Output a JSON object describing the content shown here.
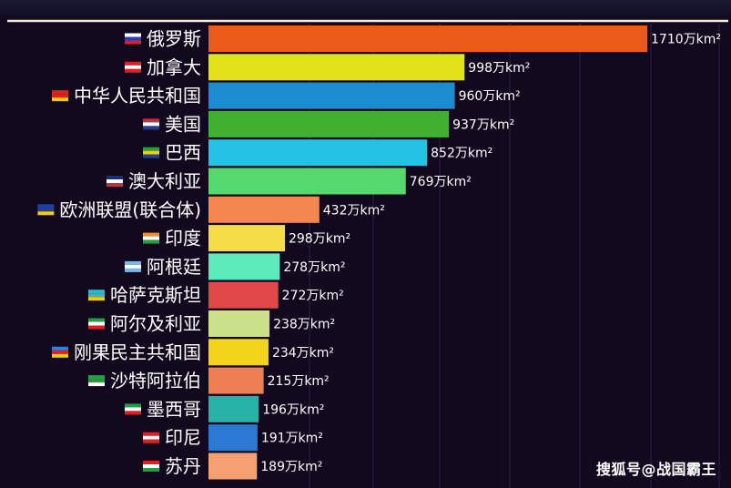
{
  "chart_data": {
    "type": "bar",
    "orientation": "horizontal",
    "unit": "万km²",
    "categories": [
      "俄罗斯",
      "加拿大",
      "中华人民共和国",
      "美国",
      "巴西",
      "澳大利亚",
      "欧洲联盟(联合体)",
      "印度",
      "阿根廷",
      "哈萨克斯坦",
      "阿尔及利亚",
      "刚果民主共和国",
      "沙特阿拉伯",
      "墨西哥",
      "印尼",
      "苏丹"
    ],
    "values": [
      1710,
      998,
      960,
      937,
      852,
      769,
      432,
      298,
      278,
      272,
      238,
      234,
      215,
      196,
      191,
      189
    ],
    "value_labels": [
      "1710万km²",
      "998万km²",
      "960万km²",
      "937万km²",
      "852万km²",
      "769万km²",
      "432万km²",
      "298万km²",
      "278万km²",
      "272万km²",
      "238万km²",
      "234万km²",
      "215万km²",
      "196万km²",
      "191万km²",
      "189万km²"
    ],
    "colors": [
      "#ec5a1a",
      "#e2e21a",
      "#1a8ccf",
      "#41b030",
      "#26c2e6",
      "#55d86e",
      "#f4874f",
      "#f4dc46",
      "#5cecbc",
      "#e04848",
      "#cae08a",
      "#f2d41a",
      "#ec8054",
      "#26b2a6",
      "#2a7ad4",
      "#f4a070"
    ],
    "flag_colors": [
      [
        "#ffffff",
        "#2040c0",
        "#e02020"
      ],
      [
        "#e02020",
        "#ffffff",
        "#e02020"
      ],
      [
        "#e02020",
        "#e02020",
        "#f0d000"
      ],
      [
        "#c03040",
        "#ffffff",
        "#2a3a8a"
      ],
      [
        "#20a040",
        "#f0d000",
        "#2040a0"
      ],
      [
        "#1a2a80",
        "#ffffff",
        "#c03040"
      ],
      [
        "#2040a0",
        "#2040a0",
        "#f0d000"
      ],
      [
        "#f09030",
        "#ffffff",
        "#20a040"
      ],
      [
        "#7ab8e8",
        "#ffffff",
        "#7ab8e8"
      ],
      [
        "#30b8d0",
        "#30b8d0",
        "#f0d000"
      ],
      [
        "#20a040",
        "#ffffff",
        "#e02020"
      ],
      [
        "#3080e0",
        "#e02020",
        "#f0d000"
      ],
      [
        "#20a040",
        "#20a040",
        "#ffffff"
      ],
      [
        "#20a040",
        "#ffffff",
        "#e02020"
      ],
      [
        "#e02020",
        "#ffffff",
        "#e02020"
      ],
      [
        "#e02020",
        "#ffffff",
        "#20a040"
      ]
    ],
    "grid": true,
    "legend": "none"
  },
  "watermark": "搜狐号@战国霸王"
}
